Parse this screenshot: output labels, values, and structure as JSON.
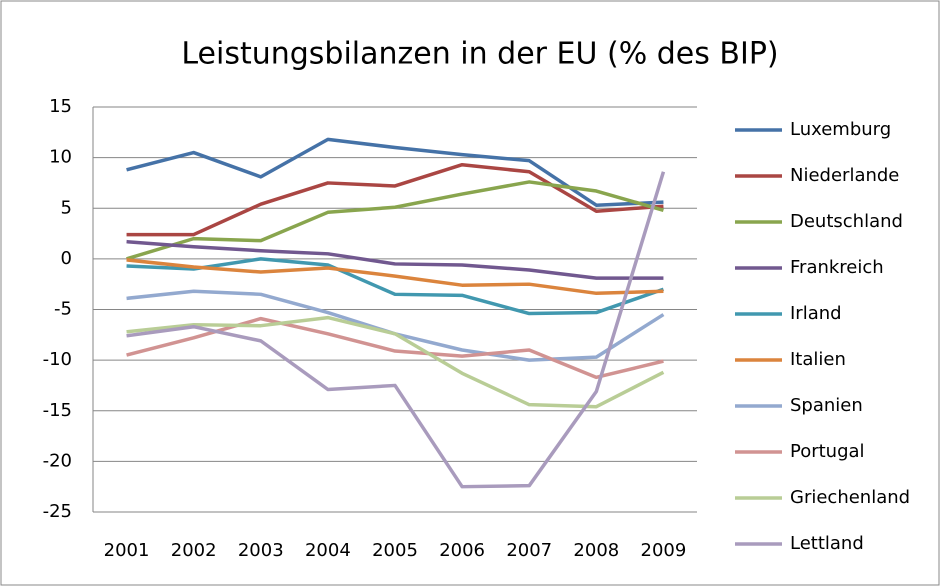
{
  "chart_data": {
    "type": "line",
    "title": "Leistungsbilanzen in der EU (% des BIP)",
    "categories": [
      "2001",
      "2002",
      "2003",
      "2004",
      "2005",
      "2006",
      "2007",
      "2008",
      "2009"
    ],
    "ylim": [
      -25,
      15
    ],
    "yticks": [
      -25,
      -20,
      -15,
      -10,
      -5,
      0,
      5,
      10,
      15
    ],
    "grid": true,
    "legend": "right",
    "series": [
      {
        "name": "Luxemburg",
        "color": "#4572A7",
        "values": [
          8.8,
          10.5,
          8.1,
          11.8,
          11.0,
          10.3,
          9.7,
          5.3,
          5.6
        ]
      },
      {
        "name": "Niederlande",
        "color": "#AA4643",
        "values": [
          2.4,
          2.4,
          5.4,
          7.5,
          7.2,
          9.3,
          8.6,
          4.7,
          5.2
        ]
      },
      {
        "name": "Deutschland",
        "color": "#89A54E",
        "values": [
          0,
          2.0,
          1.8,
          4.6,
          5.1,
          6.4,
          7.6,
          6.7,
          4.8
        ]
      },
      {
        "name": "Frankreich",
        "color": "#71588F",
        "values": [
          1.7,
          1.2,
          0.8,
          0.5,
          -0.5,
          -0.6,
          -1.1,
          -1.9,
          -1.9
        ]
      },
      {
        "name": "Irland",
        "color": "#4198AF",
        "values": [
          -0.7,
          -1.0,
          0,
          -0.6,
          -3.5,
          -3.6,
          -5.4,
          -5.3,
          -3.0
        ]
      },
      {
        "name": "Italien",
        "color": "#DB843D",
        "values": [
          -0.1,
          -0.8,
          -1.3,
          -0.9,
          -1.7,
          -2.6,
          -2.5,
          -3.4,
          -3.2
        ]
      },
      {
        "name": "Spanien",
        "color": "#93A9CF",
        "values": [
          -3.9,
          -3.2,
          -3.5,
          -5.3,
          -7.4,
          -9.0,
          -10.0,
          -9.7,
          -5.5
        ]
      },
      {
        "name": "Portugal",
        "color": "#D19392",
        "values": [
          -9.5,
          -7.8,
          -5.9,
          -7.4,
          -9.1,
          -9.6,
          -9.0,
          -11.7,
          -10.1
        ]
      },
      {
        "name": "Griechenland",
        "color": "#B9CD96",
        "values": [
          -7.2,
          -6.5,
          -6.6,
          -5.8,
          -7.4,
          -11.3,
          -14.4,
          -14.6,
          -11.2
        ]
      },
      {
        "name": "Lettland",
        "color": "#A99BBD",
        "values": [
          -7.6,
          -6.7,
          -8.1,
          -12.9,
          -12.5,
          -22.5,
          -22.4,
          -13.1,
          8.6
        ]
      }
    ]
  }
}
